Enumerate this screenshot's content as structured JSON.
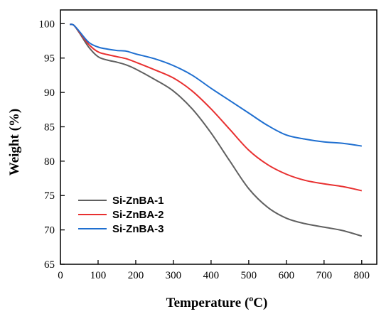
{
  "chart_data": {
    "type": "line",
    "xlabel": "Temperature (",
    "xlabel_sup": "o",
    "xlabel_unit": "C)",
    "ylabel": "Weight (%)",
    "xlim": [
      0,
      840
    ],
    "ylim": [
      65,
      102
    ],
    "xticks": [
      0,
      100,
      200,
      300,
      400,
      500,
      600,
      700,
      800
    ],
    "yticks": [
      65,
      70,
      75,
      80,
      85,
      90,
      95,
      100
    ],
    "grid": false,
    "legend_position": "bottom-left",
    "series": [
      {
        "name": "Si-ZnBA-1",
        "color": "#606060",
        "x": [
          25,
          35,
          50,
          75,
          100,
          125,
          150,
          175,
          200,
          250,
          300,
          350,
          400,
          450,
          500,
          550,
          600,
          650,
          700,
          750,
          800
        ],
        "y": [
          99.9,
          99.8,
          98.7,
          96.6,
          95.2,
          94.7,
          94.4,
          94.0,
          93.4,
          91.9,
          90.2,
          87.6,
          84.1,
          80.0,
          76.0,
          73.3,
          71.7,
          70.9,
          70.4,
          69.9,
          69.1
        ]
      },
      {
        "name": "Si-ZnBA-2",
        "color": "#e83030",
        "x": [
          25,
          35,
          50,
          75,
          100,
          125,
          150,
          175,
          200,
          250,
          300,
          350,
          400,
          450,
          500,
          550,
          600,
          650,
          700,
          750,
          800
        ],
        "y": [
          99.9,
          99.8,
          98.8,
          97.0,
          95.9,
          95.5,
          95.2,
          94.9,
          94.4,
          93.3,
          92.1,
          90.2,
          87.6,
          84.6,
          81.6,
          79.5,
          78.1,
          77.2,
          76.7,
          76.3,
          75.7
        ]
      },
      {
        "name": "Si-ZnBA-3",
        "color": "#1f6fd0",
        "x": [
          25,
          35,
          50,
          75,
          100,
          125,
          150,
          175,
          200,
          250,
          300,
          350,
          400,
          450,
          500,
          550,
          600,
          650,
          700,
          750,
          800
        ],
        "y": [
          99.9,
          99.8,
          98.9,
          97.3,
          96.6,
          96.3,
          96.1,
          96.0,
          95.6,
          94.9,
          93.9,
          92.5,
          90.6,
          88.8,
          87.0,
          85.2,
          83.8,
          83.2,
          82.8,
          82.6,
          82.2
        ]
      }
    ]
  }
}
